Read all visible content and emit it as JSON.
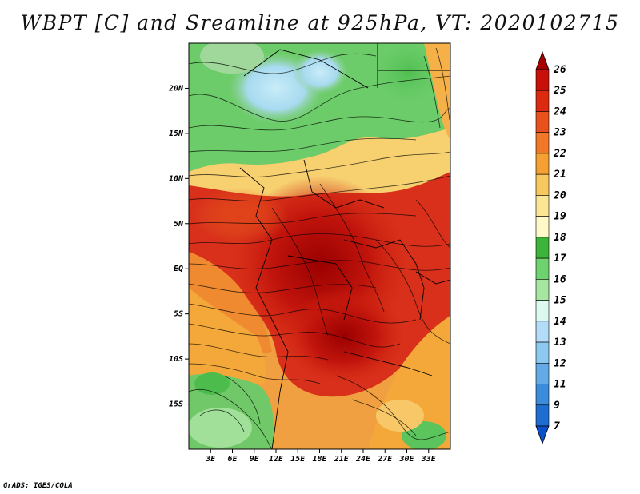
{
  "title": "WBPT [C] and Sreamline at 925hPa, VT: 2020102715",
  "credit": "GrADS: IGES/COLA",
  "map": {
    "region": "Central Africa",
    "lat_range": [
      -20,
      25
    ],
    "lon_range": [
      0,
      36
    ],
    "lat_ticks": [
      {
        "value": 20,
        "label": "20N"
      },
      {
        "value": 15,
        "label": "15N"
      },
      {
        "value": 10,
        "label": "10N"
      },
      {
        "value": 5,
        "label": "5N"
      },
      {
        "value": 0,
        "label": "EQ"
      },
      {
        "value": -5,
        "label": "5S"
      },
      {
        "value": -10,
        "label": "10S"
      },
      {
        "value": -15,
        "label": "15S"
      }
    ],
    "lon_ticks": [
      {
        "value": 3,
        "label": "3E"
      },
      {
        "value": 6,
        "label": "6E"
      },
      {
        "value": 9,
        "label": "9E"
      },
      {
        "value": 12,
        "label": "12E"
      },
      {
        "value": 15,
        "label": "15E"
      },
      {
        "value": 18,
        "label": "18E"
      },
      {
        "value": 21,
        "label": "21E"
      },
      {
        "value": 24,
        "label": "24E"
      },
      {
        "value": 27,
        "label": "27E"
      },
      {
        "value": 30,
        "label": "30E"
      },
      {
        "value": 33,
        "label": "33E"
      }
    ]
  },
  "colorbar": {
    "label_values": [
      "26",
      "25",
      "24",
      "23",
      "22",
      "21",
      "20",
      "19",
      "18",
      "17",
      "16",
      "15",
      "14",
      "13",
      "12",
      "11",
      "9",
      "7"
    ],
    "colors": [
      "#a60000",
      "#c8100a",
      "#dc2a10",
      "#e8501c",
      "#f07828",
      "#f5a032",
      "#f8c860",
      "#fbe696",
      "#fff8c8",
      "#3cb43c",
      "#6ed26e",
      "#a6e6a0",
      "#dcf8f0",
      "#b4dcf8",
      "#8cc8f0",
      "#64aae6",
      "#3c8cdc",
      "#1e6ed2",
      "#0a50c8"
    ],
    "end_top_color": "#a60000",
    "end_bottom_color": "#0a50c8"
  }
}
